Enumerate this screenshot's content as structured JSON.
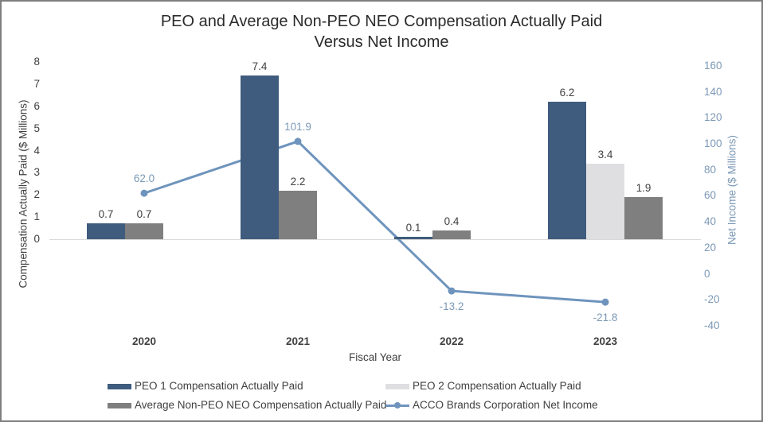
{
  "title": {
    "line1": "PEO and Average Non-PEO NEO Compensation Actually Paid",
    "line2": "Versus Net Income"
  },
  "axes": {
    "left_title": "Compensation Actually Paid ($ Millions)",
    "right_title": "Net Income ($ Millions)",
    "x_title": "Fiscal Year"
  },
  "colors": {
    "navy": "#3F5C7E",
    "gray": "#7F7F7F",
    "light_gray": "#DFDFE1",
    "line_blue": "#6E94BD",
    "axis_blue": "#7C99B6",
    "gridline": "#D9D9D9"
  },
  "legend": [
    {
      "label": "PEO 1 Compensation Actually Paid",
      "swatch": "bar",
      "color_key": "navy"
    },
    {
      "label": "PEO 2 Compensation Actually Paid",
      "swatch": "bar",
      "color_key": "light_gray"
    },
    {
      "label": "Average Non-PEO NEO Compensation Actually Paid",
      "swatch": "bar",
      "color_key": "gray"
    },
    {
      "label": "ACCO Brands Corporation Net Income",
      "swatch": "line",
      "color_key": "line_blue"
    }
  ],
  "chart_data": {
    "type": "combo_bar_line",
    "title": "PEO and Average Non-PEO NEO Compensation Actually Paid Versus Net Income",
    "categories": [
      "2020",
      "2021",
      "2022",
      "2023"
    ],
    "xlabel": "Fiscal Year",
    "ylabel_left": "Compensation Actually Paid ($ Millions)",
    "ylabel_right": "Net Income ($ Millions)",
    "left_axis_ticks": [
      8,
      7,
      6,
      5,
      4,
      3,
      2,
      1,
      0
    ],
    "right_axis_ticks": [
      160,
      140,
      120,
      100,
      80,
      60,
      40,
      20,
      0,
      -20,
      -40
    ],
    "ylim_left": [
      0,
      8
    ],
    "ylim_right": [
      -40,
      160
    ],
    "grid": "zero-line-only",
    "legend_position": "bottom",
    "bar_series": [
      {
        "name": "PEO 1 Compensation Actually Paid",
        "color_key": "navy",
        "values": [
          0.7,
          7.4,
          0.1,
          6.2
        ]
      },
      {
        "name": "PEO 2 Compensation Actually Paid",
        "color_key": "light_gray",
        "values": [
          null,
          null,
          null,
          3.4
        ]
      },
      {
        "name": "Average Non-PEO NEO Compensation Actually Paid",
        "color_key": "gray",
        "values": [
          0.7,
          2.2,
          0.4,
          1.9
        ]
      }
    ],
    "line_series": {
      "name": "ACCO Brands Corporation Net Income",
      "color_key": "line_blue",
      "values": [
        62.0,
        101.9,
        -13.2,
        -21.8
      ],
      "labels": [
        "62.0",
        "101.9",
        "-13.2",
        "-21.8"
      ],
      "label_side": [
        "above",
        "above",
        "below",
        "below"
      ]
    }
  }
}
